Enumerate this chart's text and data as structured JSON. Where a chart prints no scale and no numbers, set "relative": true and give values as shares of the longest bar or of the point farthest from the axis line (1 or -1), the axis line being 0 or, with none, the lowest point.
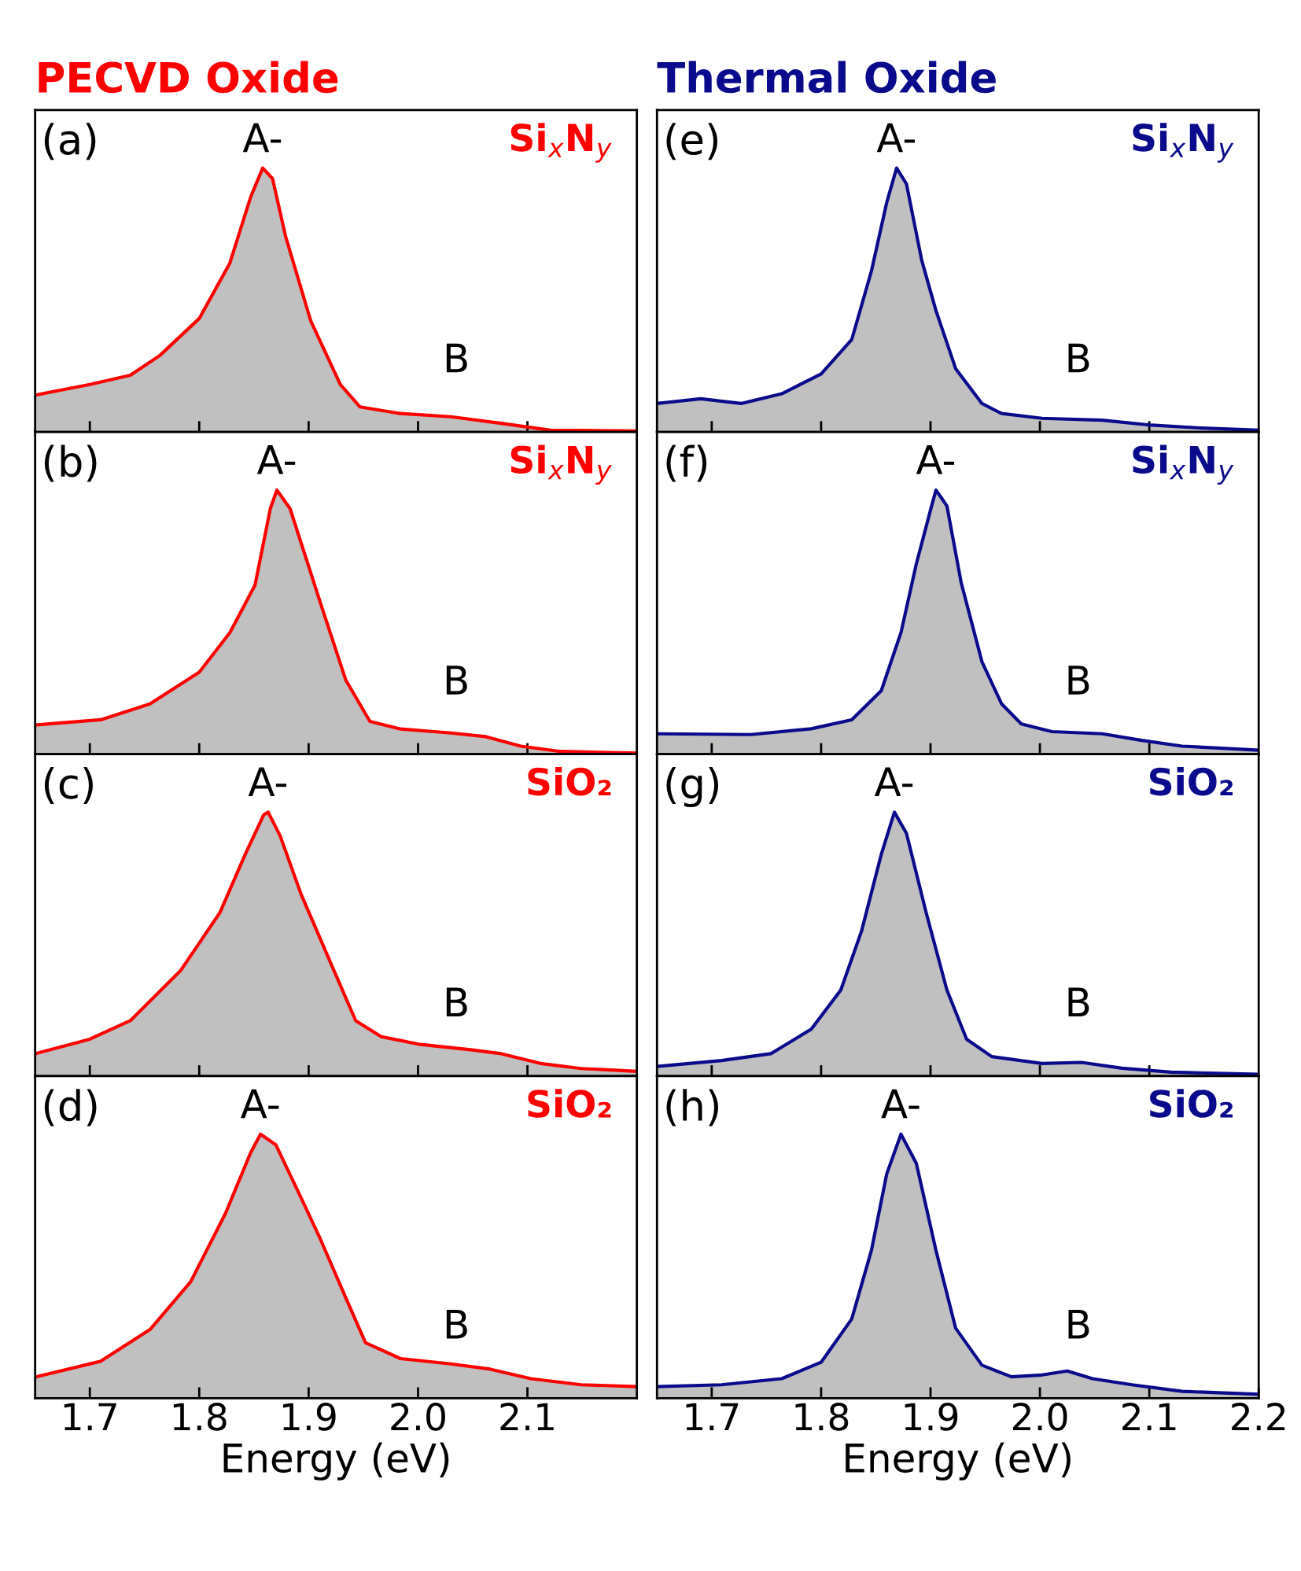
{
  "chart_data": [
    {
      "type": "area",
      "title": "PECVD Oxide",
      "relative": true,
      "xlim": [
        1.65,
        2.2
      ],
      "xticks": [
        1.7,
        1.8,
        1.9,
        2.0,
        2.1
      ],
      "tick_labels": false,
      "x": [
        1.65,
        1.7,
        1.737,
        1.764,
        1.8,
        1.828,
        1.847,
        1.858,
        1.867,
        1.879,
        1.902,
        1.929,
        1.947,
        1.984,
        2.03,
        2.076,
        2.121,
        2.2
      ],
      "series": [
        {
          "color": "#ff0000",
          "values": [
            0.14,
            0.18,
            0.215,
            0.29,
            0.43,
            0.64,
            0.89,
            1.0,
            0.96,
            0.74,
            0.42,
            0.18,
            0.095,
            0.07,
            0.058,
            0.033,
            0.007,
            0.004
          ]
        }
      ],
      "annotations": [
        "(a)",
        "A-",
        "B",
        "Si$_{x}$N$_{y}$"
      ]
    },
    {
      "type": "area",
      "relative": true,
      "xlim": [
        1.65,
        2.2
      ],
      "xticks": [
        1.7,
        1.8,
        1.9,
        2.0,
        2.1
      ],
      "tick_labels": false,
      "x": [
        1.65,
        1.71,
        1.755,
        1.8,
        1.828,
        1.851,
        1.865,
        1.871,
        1.883,
        1.911,
        1.934,
        1.956,
        1.984,
        2.03,
        2.062,
        2.094,
        2.13,
        2.2
      ],
      "series": [
        {
          "color": "#ff0000",
          "values": [
            0.11,
            0.13,
            0.19,
            0.31,
            0.46,
            0.64,
            0.93,
            1.0,
            0.93,
            0.57,
            0.28,
            0.124,
            0.095,
            0.08,
            0.066,
            0.03,
            0.01,
            0.004
          ]
        }
      ],
      "annotations": [
        "(b)",
        "A-",
        "B",
        "Si$_{x}$N$_{y}$"
      ]
    },
    {
      "type": "area",
      "relative": true,
      "xlim": [
        1.65,
        2.2
      ],
      "xticks": [
        1.7,
        1.8,
        1.9,
        2.0,
        2.1
      ],
      "tick_labels": false,
      "x": [
        1.65,
        1.7,
        1.737,
        1.783,
        1.819,
        1.842,
        1.859,
        1.863,
        1.874,
        1.893,
        1.92,
        1.943,
        1.966,
        2.002,
        2.048,
        2.076,
        2.112,
        2.149,
        2.2
      ],
      "series": [
        {
          "color": "#ff0000",
          "values": [
            0.085,
            0.14,
            0.21,
            0.4,
            0.62,
            0.84,
            0.99,
            1.0,
            0.91,
            0.69,
            0.43,
            0.21,
            0.15,
            0.12,
            0.1,
            0.085,
            0.048,
            0.029,
            0.018
          ]
        }
      ],
      "annotations": [
        "(c)",
        "A-",
        "B",
        "SiO₂"
      ]
    },
    {
      "type": "area",
      "relative": true,
      "xlim": [
        1.65,
        2.2
      ],
      "xticks": [
        1.7,
        1.8,
        1.9,
        {
          "value": 2.0,
          "label": "2.0"
        },
        2.1
      ],
      "tick_labels": "x",
      "xlabel": "Energy (eV)",
      "x": [
        1.65,
        1.71,
        1.755,
        1.792,
        1.824,
        1.847,
        1.856,
        1.87,
        1.893,
        1.911,
        1.934,
        1.952,
        1.984,
        2.03,
        2.066,
        2.103,
        2.149,
        2.2
      ],
      "series": [
        {
          "color": "#ff0000",
          "values": [
            0.08,
            0.14,
            0.26,
            0.44,
            0.7,
            0.93,
            1.0,
            0.96,
            0.76,
            0.6,
            0.38,
            0.21,
            0.15,
            0.13,
            0.11,
            0.074,
            0.051,
            0.044
          ]
        }
      ],
      "annotations": [
        "(d)",
        "A-",
        "B",
        "SiO₂"
      ]
    },
    {
      "type": "area",
      "title": "Thermal Oxide",
      "relative": true,
      "xlim": [
        1.65,
        2.2
      ],
      "xticks": [
        1.7,
        1.8,
        1.9,
        2.0,
        2.1
      ],
      "tick_labels": false,
      "x": [
        1.65,
        1.69,
        1.727,
        1.764,
        1.8,
        1.828,
        1.846,
        1.86,
        1.869,
        1.878,
        1.892,
        1.905,
        1.923,
        1.947,
        1.965,
        2.002,
        2.057,
        2.102,
        2.148,
        2.2
      ],
      "series": [
        {
          "color": "#0a0a8c",
          "values": [
            0.108,
            0.126,
            0.108,
            0.145,
            0.22,
            0.35,
            0.61,
            0.87,
            1.0,
            0.94,
            0.65,
            0.46,
            0.24,
            0.108,
            0.07,
            0.052,
            0.045,
            0.026,
            0.015,
            0.007
          ]
        }
      ],
      "annotations": [
        "(e)",
        "A-",
        "B",
        "Si$_{x}$N$_{y}$"
      ]
    },
    {
      "type": "area",
      "relative": true,
      "xlim": [
        1.65,
        2.2
      ],
      "xticks": [
        1.7,
        1.8,
        1.9,
        2.0,
        2.1
      ],
      "tick_labels": false,
      "x": [
        1.65,
        1.736,
        1.791,
        1.828,
        1.855,
        1.873,
        1.887,
        1.901,
        1.905,
        1.915,
        1.928,
        1.947,
        1.965,
        1.983,
        2.011,
        2.057,
        2.093,
        2.13,
        2.2
      ],
      "series": [
        {
          "color": "#0a0a8c",
          "values": [
            0.077,
            0.074,
            0.096,
            0.13,
            0.24,
            0.46,
            0.72,
            0.94,
            1.0,
            0.94,
            0.65,
            0.35,
            0.19,
            0.114,
            0.085,
            0.077,
            0.052,
            0.03,
            0.015
          ]
        }
      ],
      "annotations": [
        "(f)",
        "A-",
        "B",
        "Si$_{x}$N$_{y}$"
      ]
    },
    {
      "type": "area",
      "relative": true,
      "xlim": [
        1.65,
        2.2
      ],
      "xticks": [
        1.7,
        1.8,
        1.9,
        2.0,
        2.1
      ],
      "tick_labels": false,
      "x": [
        1.65,
        1.709,
        1.754,
        1.791,
        1.818,
        1.837,
        1.855,
        1.867,
        1.878,
        1.896,
        1.915,
        1.933,
        1.956,
        2.002,
        2.038,
        2.075,
        2.12,
        2.2
      ],
      "series": [
        {
          "color": "#0a0a8c",
          "values": [
            0.037,
            0.059,
            0.085,
            0.178,
            0.326,
            0.55,
            0.84,
            1.0,
            0.92,
            0.62,
            0.326,
            0.14,
            0.074,
            0.048,
            0.052,
            0.03,
            0.015,
            0.007
          ]
        }
      ],
      "annotations": [
        "(g)",
        "A-",
        "B",
        "SiO₂"
      ]
    },
    {
      "type": "area",
      "relative": true,
      "xlim": [
        1.65,
        2.2
      ],
      "xticks": [
        1.7,
        1.8,
        1.9,
        {
          "value": 2.0,
          "label": "2.0"
        },
        2.1,
        2.2
      ],
      "tick_labels": "x",
      "xlabel": "Energy (eV)",
      "x": [
        1.65,
        1.709,
        1.764,
        1.8,
        1.828,
        1.846,
        1.86,
        1.873,
        1.887,
        1.905,
        1.923,
        1.947,
        1.974,
        2.002,
        2.025,
        2.048,
        2.084,
        2.13,
        2.2
      ],
      "series": [
        {
          "color": "#0a0a8c",
          "values": [
            0.044,
            0.051,
            0.074,
            0.136,
            0.3,
            0.56,
            0.85,
            1.0,
            0.89,
            0.56,
            0.265,
            0.125,
            0.081,
            0.088,
            0.103,
            0.074,
            0.051,
            0.026,
            0.015
          ]
        }
      ],
      "annotations": [
        "(h)",
        "A-",
        "B",
        "SiO₂"
      ]
    }
  ]
}
